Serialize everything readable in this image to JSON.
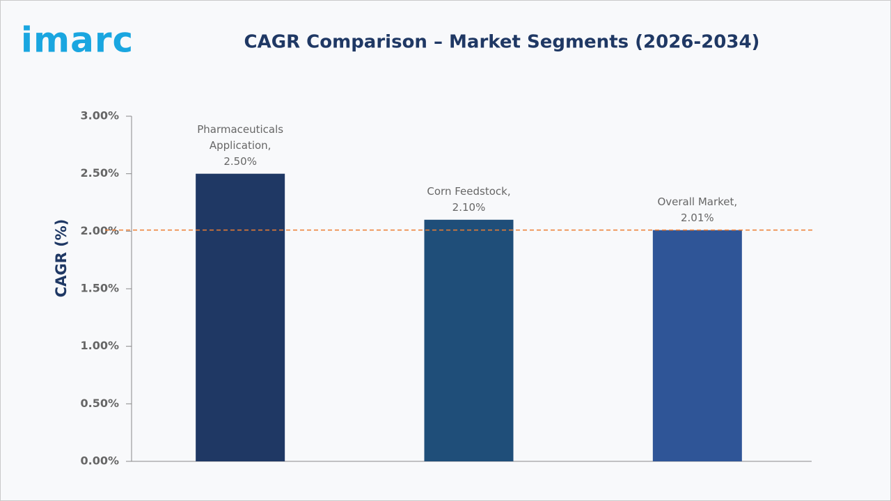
{
  "logo": "imarc",
  "chart_data": {
    "type": "bar",
    "title": "CAGR Comparison – Market Segments (2026-2034)",
    "y_label": "CAGR (%)",
    "categories": [
      "Pharmaceuticals Application,",
      "Corn Feedstock,",
      "Overall Market,"
    ],
    "values": [
      2.5,
      2.1,
      2.01
    ],
    "value_labels": [
      "2.50%",
      "2.10%",
      "2.01%"
    ],
    "colors": [
      "#1f3864",
      "#1f4e79",
      "#2f5597"
    ],
    "ylim": [
      0,
      3
    ],
    "yticks": [
      {
        "value": 0,
        "label": "0.00%"
      },
      {
        "value": 0.5,
        "label": "0.50%"
      },
      {
        "value": 1,
        "label": "1.00%"
      },
      {
        "value": 1.5,
        "label": "1.50%"
      },
      {
        "value": 2,
        "label": "2.00%"
      },
      {
        "value": 2.5,
        "label": "2.50%"
      },
      {
        "value": 3,
        "label": "3.00%"
      }
    ],
    "reference_line": 2.01,
    "reference_color": "#ed7d31",
    "grid": false
  }
}
